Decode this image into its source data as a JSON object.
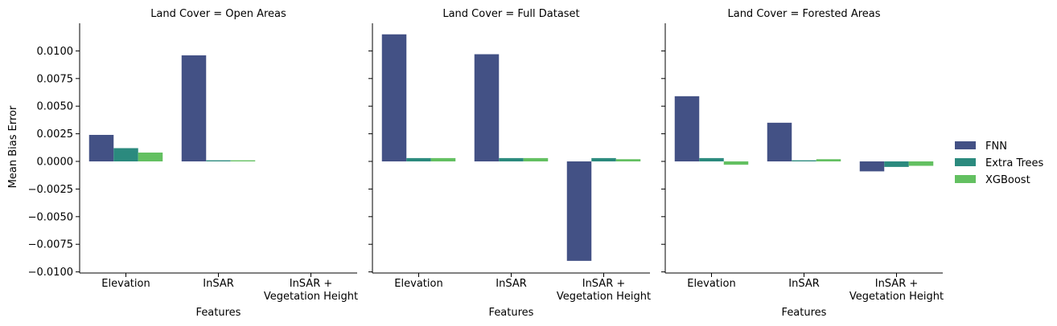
{
  "figure": {
    "ylabel": "Mean Bias Error",
    "xlabel": "Features",
    "ylim": [
      -0.0101,
      0.0125
    ],
    "yticks": [
      -0.01,
      -0.0075,
      -0.005,
      -0.0025,
      0.0,
      0.0025,
      0.005,
      0.0075,
      0.01
    ],
    "ytick_labels": [
      "−0.0100",
      "−0.0075",
      "−0.0050",
      "−0.0025",
      "0.0000",
      "0.0025",
      "0.0050",
      "0.0075",
      "0.0100"
    ],
    "category_labels": [
      [
        "Elevation"
      ],
      [
        "InSAR"
      ],
      [
        "InSAR +",
        "Vegetation Height"
      ]
    ]
  },
  "legend": {
    "items": [
      {
        "label": "FNN",
        "color": "#435185"
      },
      {
        "label": "Extra Trees",
        "color": "#2b8a7e"
      },
      {
        "label": "XGBoost",
        "color": "#63c061"
      }
    ],
    "placement": "right"
  },
  "chart_data": [
    {
      "type": "bar",
      "title": "Land Cover = Open Areas",
      "xlabel": "Features",
      "ylabel": "Mean Bias Error",
      "categories": [
        "Elevation",
        "InSAR",
        "InSAR + Vegetation Height"
      ],
      "series": [
        {
          "name": "FNN",
          "values": [
            0.0024,
            0.0096,
            null
          ]
        },
        {
          "name": "Extra Trees",
          "values": [
            0.0012,
            0.0001,
            null
          ]
        },
        {
          "name": "XGBoost",
          "values": [
            0.0008,
            0.0001,
            null
          ]
        }
      ]
    },
    {
      "type": "bar",
      "title": "Land Cover = Full Dataset",
      "xlabel": "Features",
      "categories": [
        "Elevation",
        "InSAR",
        "InSAR + Vegetation Height"
      ],
      "series": [
        {
          "name": "FNN",
          "values": [
            0.0115,
            0.0097,
            -0.009
          ]
        },
        {
          "name": "Extra Trees",
          "values": [
            0.0003,
            0.0003,
            0.0003
          ]
        },
        {
          "name": "XGBoost",
          "values": [
            0.0003,
            0.0003,
            0.0002
          ]
        }
      ]
    },
    {
      "type": "bar",
      "title": "Land Cover = Forested Areas",
      "xlabel": "Features",
      "categories": [
        "Elevation",
        "InSAR",
        "InSAR + Vegetation Height"
      ],
      "series": [
        {
          "name": "FNN",
          "values": [
            0.0059,
            0.0035,
            -0.0009
          ]
        },
        {
          "name": "Extra Trees",
          "values": [
            0.0003,
            0.0001,
            -0.0005
          ]
        },
        {
          "name": "XGBoost",
          "values": [
            -0.0003,
            0.0002,
            -0.0004
          ]
        }
      ]
    }
  ]
}
